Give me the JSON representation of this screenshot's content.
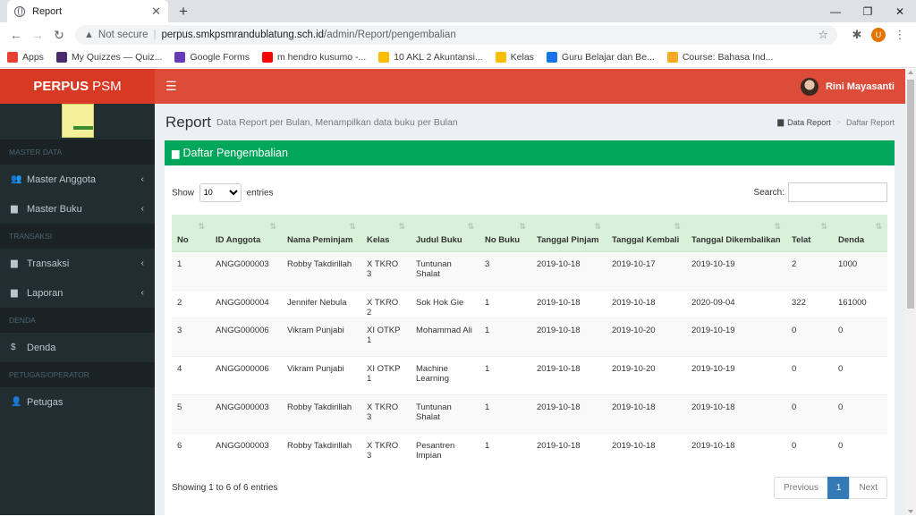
{
  "browser": {
    "tab_title": "Report",
    "url_warning": "Not secure",
    "url_host": "perpus.smkpsmrandublatung.sch.id",
    "url_path": "/admin/Report/pengembalian",
    "bookmarks": [
      {
        "label": "Apps",
        "color": "#e94235"
      },
      {
        "label": "My Quizzes — Quiz...",
        "color": "#4a2c6d"
      },
      {
        "label": "Google Forms",
        "color": "#673ab7"
      },
      {
        "label": "m hendro kusumo -...",
        "color": "#ff0000"
      },
      {
        "label": "10 AKL 2 Akuntansi...",
        "color": "#fbbc04"
      },
      {
        "label": "Kelas",
        "color": "#fbbc04"
      },
      {
        "label": "Guru Belajar dan Be...",
        "color": "#1a73e8"
      },
      {
        "label": "Course: Bahasa Ind...",
        "color": "#f9a825"
      }
    ],
    "profile_initial": "U"
  },
  "app": {
    "brand_bold": "PERPUS",
    "brand_rest": "PSM",
    "user_name": "Rini Mayasanti",
    "colors": {
      "header": "#dd4b39",
      "brand": "#d73925",
      "sidebar": "#222d32",
      "box": "#00a65a"
    }
  },
  "sidebar": {
    "sections": [
      {
        "header": "MASTER DATA",
        "items": [
          {
            "label": "Master Anggota",
            "icon": "users-icon",
            "chevron": true
          },
          {
            "label": "Master Buku",
            "icon": "book-icon",
            "chevron": true
          }
        ]
      },
      {
        "header": "Transaksi",
        "items": [
          {
            "label": "Transaksi",
            "icon": "book-icon",
            "chevron": true
          },
          {
            "label": "Laporan",
            "icon": "book-icon",
            "chevron": true
          }
        ]
      },
      {
        "header": "DENDA",
        "items": [
          {
            "label": "Denda",
            "icon": "dollar-icon",
            "chevron": false
          }
        ]
      },
      {
        "header": "PETUGAS/OPERATOR",
        "items": [
          {
            "label": "Petugas",
            "icon": "user-plus-icon",
            "chevron": false
          }
        ]
      }
    ]
  },
  "page": {
    "title": "Report",
    "subtitle": "Data Report per Bulan, Menampilkan data buku per Bulan",
    "breadcrumb": [
      "Data Report",
      "Daftar Report"
    ],
    "box_title": "Daftar Pengembalian"
  },
  "table": {
    "show_label": "Show",
    "entries_value": "10",
    "entries_label": "entries",
    "search_label": "Search:",
    "columns": [
      "No",
      "ID Anggota",
      "Nama Peminjam",
      "Kelas",
      "Judul Buku",
      "No Buku",
      "Tanggal Pinjam",
      "Tanggal Kembali",
      "Tanggal Dikembalikan",
      "Telat",
      "Denda"
    ],
    "rows": [
      [
        "1",
        "ANGG000003",
        "Robby Takdirillah",
        "X TKRO 3",
        "Tuntunan Shalat",
        "3",
        "2019-10-18",
        "2019-10-17",
        "2019-10-19",
        "2",
        "1000"
      ],
      [
        "2",
        "ANGG000004",
        "Jennifer Nebula",
        "X TKRO 2",
        "Sok Hok Gie",
        "1",
        "2019-10-18",
        "2019-10-18",
        "2020-09-04",
        "322",
        "161000"
      ],
      [
        "3",
        "ANGG000006",
        "Vikram Punjabi",
        "XI OTKP 1",
        "Mohammad Ali",
        "1",
        "2019-10-18",
        "2019-10-20",
        "2019-10-19",
        "0",
        "0"
      ],
      [
        "4",
        "ANGG000006",
        "Vikram Punjabi",
        "XI OTKP 1",
        "Machine Learning",
        "1",
        "2019-10-18",
        "2019-10-20",
        "2019-10-19",
        "0",
        "0"
      ],
      [
        "5",
        "ANGG000003",
        "Robby Takdirillah",
        "X TKRO 3",
        "Tuntunan Shalat",
        "1",
        "2019-10-18",
        "2019-10-18",
        "2019-10-18",
        "0",
        "0"
      ],
      [
        "6",
        "ANGG000003",
        "Robby Takdirillah",
        "X TKRO 3",
        "Pesantren Impian",
        "1",
        "2019-10-18",
        "2019-10-18",
        "2019-10-18",
        "0",
        "0"
      ]
    ],
    "info": "Showing 1 to 6 of 6 entries",
    "pager": {
      "previous": "Previous",
      "current": "1",
      "next": "Next"
    }
  }
}
